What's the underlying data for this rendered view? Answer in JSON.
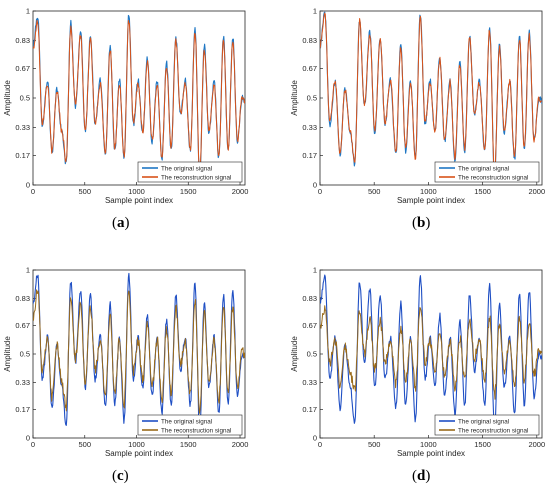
{
  "chart_data": [
    {
      "type": "line",
      "panel": "a",
      "xlabel": "Sample point index",
      "ylabel": "Amplitude",
      "xlim": [
        0,
        2048
      ],
      "ylim": [
        0,
        1
      ],
      "x_ticks": [
        "0",
        "500",
        "1000",
        "1500",
        "2000"
      ],
      "y_ticks": [
        "0",
        "0.17",
        "0.33",
        "0.5",
        "0.67",
        "0.83",
        "1"
      ],
      "legend": "bottom-right",
      "series": [
        {
          "name": "The original signal",
          "color": "#1f77c4",
          "x": [
            0,
            45,
            90,
            140,
            185,
            230,
            280,
            320,
            365,
            410,
            460,
            505,
            555,
            600,
            650,
            700,
            745,
            790,
            835,
            880,
            925,
            970,
            1015,
            1060,
            1105,
            1150,
            1200,
            1245,
            1290,
            1335,
            1380,
            1425,
            1470,
            1520,
            1565,
            1610,
            1655,
            1700,
            1750,
            1795,
            1840,
            1885,
            1930,
            1975,
            2020,
            2048
          ],
          "y": [
            0.8,
            0.97,
            0.35,
            0.6,
            0.18,
            0.55,
            0.3,
            0.12,
            0.93,
            0.45,
            0.88,
            0.3,
            0.85,
            0.35,
            0.6,
            0.18,
            0.8,
            0.2,
            0.6,
            0.15,
            0.97,
            0.35,
            0.6,
            0.3,
            0.73,
            0.25,
            0.6,
            0.15,
            0.7,
            0.2,
            0.85,
            0.4,
            0.6,
            0.2,
            0.9,
            0.05,
            0.8,
            0.3,
            0.6,
            0.15,
            0.85,
            0.2,
            0.85,
            0.25,
            0.5,
            0.48
          ]
        },
        {
          "name": "The reconstruction signal",
          "color": "#d95319",
          "x": [
            0,
            45,
            90,
            140,
            185,
            230,
            280,
            320,
            365,
            410,
            460,
            505,
            555,
            600,
            650,
            700,
            745,
            790,
            835,
            880,
            925,
            970,
            1015,
            1060,
            1105,
            1150,
            1200,
            1245,
            1290,
            1335,
            1380,
            1425,
            1470,
            1520,
            1565,
            1610,
            1655,
            1700,
            1750,
            1795,
            1840,
            1885,
            1930,
            1975,
            2020,
            2048
          ],
          "y": [
            0.78,
            0.94,
            0.36,
            0.58,
            0.19,
            0.54,
            0.31,
            0.14,
            0.9,
            0.46,
            0.86,
            0.31,
            0.83,
            0.36,
            0.58,
            0.19,
            0.78,
            0.21,
            0.58,
            0.17,
            0.94,
            0.36,
            0.58,
            0.31,
            0.71,
            0.26,
            0.58,
            0.16,
            0.68,
            0.21,
            0.83,
            0.41,
            0.58,
            0.21,
            0.88,
            0.07,
            0.78,
            0.31,
            0.58,
            0.16,
            0.83,
            0.21,
            0.83,
            0.26,
            0.5,
            0.47
          ]
        }
      ]
    },
    {
      "type": "line",
      "panel": "b",
      "xlabel": "Sample point index",
      "ylabel": "Amplitude",
      "xlim": [
        0,
        2048
      ],
      "ylim": [
        0,
        1
      ],
      "x_ticks": [
        "0",
        "500",
        "1000",
        "1500",
        "2000"
      ],
      "y_ticks": [
        "0",
        "0.17",
        "0.33",
        "0.5",
        "0.67",
        "0.83",
        "1"
      ],
      "legend": "bottom-right",
      "series": [
        {
          "name": "The original signal",
          "color": "#1f77c4",
          "x": [
            0,
            45,
            90,
            140,
            185,
            230,
            280,
            320,
            365,
            410,
            460,
            505,
            555,
            600,
            650,
            700,
            745,
            790,
            835,
            880,
            925,
            970,
            1015,
            1060,
            1105,
            1150,
            1200,
            1245,
            1290,
            1335,
            1380,
            1425,
            1470,
            1520,
            1565,
            1610,
            1655,
            1700,
            1750,
            1795,
            1840,
            1885,
            1930,
            1975,
            2020,
            2048
          ],
          "y": [
            0.8,
            0.99,
            0.35,
            0.6,
            0.18,
            0.55,
            0.3,
            0.12,
            0.95,
            0.45,
            0.88,
            0.3,
            0.85,
            0.35,
            0.6,
            0.18,
            0.8,
            0.2,
            0.6,
            0.15,
            0.98,
            0.35,
            0.6,
            0.3,
            0.73,
            0.25,
            0.6,
            0.15,
            0.7,
            0.2,
            0.85,
            0.4,
            0.6,
            0.2,
            0.9,
            0.05,
            0.8,
            0.3,
            0.6,
            0.15,
            0.85,
            0.2,
            0.88,
            0.25,
            0.5,
            0.48
          ]
        },
        {
          "name": "The reconstruction signal",
          "color": "#d95319",
          "x": [
            0,
            45,
            90,
            140,
            185,
            230,
            280,
            320,
            365,
            410,
            460,
            505,
            555,
            600,
            650,
            700,
            745,
            790,
            835,
            880,
            925,
            970,
            1015,
            1060,
            1105,
            1150,
            1200,
            1245,
            1290,
            1335,
            1380,
            1425,
            1470,
            1520,
            1565,
            1610,
            1655,
            1700,
            1750,
            1795,
            1840,
            1885,
            1930,
            1975,
            2020,
            2048
          ],
          "y": [
            0.8,
            0.98,
            0.36,
            0.6,
            0.19,
            0.55,
            0.31,
            0.13,
            0.94,
            0.46,
            0.87,
            0.31,
            0.84,
            0.36,
            0.6,
            0.19,
            0.79,
            0.21,
            0.59,
            0.16,
            0.96,
            0.36,
            0.59,
            0.31,
            0.72,
            0.26,
            0.59,
            0.16,
            0.69,
            0.21,
            0.84,
            0.41,
            0.59,
            0.21,
            0.89,
            0.06,
            0.79,
            0.31,
            0.59,
            0.16,
            0.84,
            0.21,
            0.86,
            0.26,
            0.5,
            0.48
          ]
        }
      ]
    },
    {
      "type": "line",
      "panel": "c",
      "xlabel": "Sample point index",
      "ylabel": "Amplitude",
      "xlim": [
        0,
        2048
      ],
      "ylim": [
        0,
        1
      ],
      "x_ticks": [
        "0",
        "500",
        "1000",
        "1500",
        "2000"
      ],
      "y_ticks": [
        "0",
        "0.17",
        "0.33",
        "0.5",
        "0.67",
        "0.83",
        "1"
      ],
      "legend": "bottom-right",
      "series": [
        {
          "name": "The original signal",
          "color": "#1f4fc4",
          "x": [
            0,
            45,
            90,
            140,
            185,
            230,
            280,
            320,
            365,
            410,
            460,
            505,
            555,
            600,
            650,
            700,
            745,
            790,
            835,
            880,
            925,
            970,
            1015,
            1060,
            1105,
            1150,
            1200,
            1245,
            1290,
            1335,
            1380,
            1425,
            1470,
            1520,
            1565,
            1610,
            1655,
            1700,
            1750,
            1795,
            1840,
            1885,
            1930,
            1975,
            2020,
            2048
          ],
          "y": [
            0.8,
            0.97,
            0.35,
            0.6,
            0.18,
            0.55,
            0.3,
            0.08,
            0.93,
            0.45,
            0.88,
            0.3,
            0.85,
            0.35,
            0.6,
            0.18,
            0.8,
            0.2,
            0.6,
            0.1,
            0.97,
            0.35,
            0.6,
            0.3,
            0.73,
            0.25,
            0.6,
            0.15,
            0.7,
            0.2,
            0.85,
            0.4,
            0.6,
            0.2,
            0.92,
            0.04,
            0.8,
            0.3,
            0.6,
            0.15,
            0.85,
            0.2,
            0.88,
            0.25,
            0.5,
            0.48
          ]
        },
        {
          "name": "The reconstruction signal",
          "color": "#9a6a1a",
          "x": [
            0,
            45,
            90,
            140,
            185,
            230,
            280,
            320,
            365,
            410,
            460,
            505,
            555,
            600,
            650,
            700,
            745,
            790,
            835,
            880,
            925,
            970,
            1015,
            1060,
            1105,
            1150,
            1200,
            1245,
            1290,
            1335,
            1380,
            1425,
            1470,
            1520,
            1565,
            1610,
            1655,
            1700,
            1750,
            1795,
            1840,
            1885,
            1930,
            1975,
            2020,
            2048
          ],
          "y": [
            0.72,
            0.88,
            0.4,
            0.58,
            0.24,
            0.55,
            0.33,
            0.18,
            0.85,
            0.47,
            0.8,
            0.34,
            0.78,
            0.4,
            0.58,
            0.24,
            0.74,
            0.26,
            0.58,
            0.2,
            0.88,
            0.4,
            0.58,
            0.34,
            0.68,
            0.3,
            0.58,
            0.22,
            0.65,
            0.26,
            0.78,
            0.44,
            0.58,
            0.26,
            0.82,
            0.14,
            0.74,
            0.34,
            0.58,
            0.22,
            0.78,
            0.26,
            0.78,
            0.3,
            0.52,
            0.5
          ]
        }
      ]
    },
    {
      "type": "line",
      "panel": "d",
      "xlabel": "Sample point index",
      "ylabel": "Amplitude",
      "xlim": [
        0,
        2048
      ],
      "ylim": [
        0,
        1
      ],
      "x_ticks": [
        "0",
        "500",
        "1000",
        "1500",
        "2000"
      ],
      "y_ticks": [
        "0",
        "0.17",
        "0.33",
        "0.5",
        "0.67",
        "0.83",
        "1"
      ],
      "legend": "bottom-right",
      "series": [
        {
          "name": "The original signal",
          "color": "#1f4fc4",
          "x": [
            0,
            45,
            90,
            140,
            185,
            230,
            280,
            320,
            365,
            410,
            460,
            505,
            555,
            600,
            650,
            700,
            745,
            790,
            835,
            880,
            925,
            970,
            1015,
            1060,
            1105,
            1150,
            1200,
            1245,
            1290,
            1335,
            1380,
            1425,
            1470,
            1520,
            1565,
            1610,
            1655,
            1700,
            1750,
            1795,
            1840,
            1885,
            1930,
            1975,
            2020,
            2048
          ],
          "y": [
            0.8,
            0.97,
            0.35,
            0.6,
            0.18,
            0.55,
            0.3,
            0.08,
            0.93,
            0.45,
            0.88,
            0.3,
            0.85,
            0.35,
            0.6,
            0.18,
            0.8,
            0.2,
            0.6,
            0.1,
            0.97,
            0.35,
            0.6,
            0.3,
            0.73,
            0.25,
            0.6,
            0.15,
            0.7,
            0.2,
            0.85,
            0.4,
            0.6,
            0.2,
            0.92,
            0.04,
            0.8,
            0.3,
            0.6,
            0.15,
            0.85,
            0.2,
            0.88,
            0.25,
            0.5,
            0.48
          ]
        },
        {
          "name": "The reconstruction signal",
          "color": "#9a6a1a",
          "x": [
            0,
            45,
            90,
            140,
            185,
            230,
            280,
            320,
            365,
            410,
            460,
            505,
            555,
            600,
            650,
            700,
            745,
            790,
            835,
            880,
            925,
            970,
            1015,
            1060,
            1105,
            1150,
            1200,
            1245,
            1290,
            1335,
            1380,
            1425,
            1470,
            1520,
            1565,
            1610,
            1655,
            1700,
            1750,
            1795,
            1840,
            1885,
            1930,
            1975,
            2020,
            2048
          ],
          "y": [
            0.65,
            0.78,
            0.45,
            0.58,
            0.32,
            0.55,
            0.38,
            0.28,
            0.76,
            0.5,
            0.7,
            0.4,
            0.7,
            0.45,
            0.58,
            0.32,
            0.66,
            0.35,
            0.58,
            0.3,
            0.8,
            0.45,
            0.58,
            0.4,
            0.62,
            0.38,
            0.58,
            0.3,
            0.6,
            0.35,
            0.7,
            0.48,
            0.58,
            0.35,
            0.72,
            0.25,
            0.66,
            0.4,
            0.58,
            0.32,
            0.7,
            0.35,
            0.7,
            0.38,
            0.52,
            0.5
          ]
        }
      ]
    }
  ],
  "captions": [
    {
      "label": "a"
    },
    {
      "label": "b"
    },
    {
      "label": "c"
    },
    {
      "label": "d"
    }
  ]
}
